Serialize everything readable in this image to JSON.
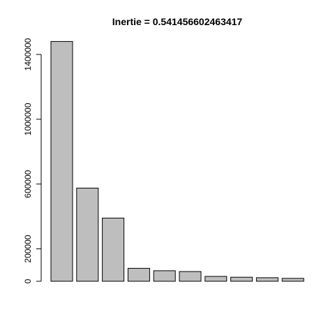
{
  "chart_data": {
    "type": "bar",
    "title": "Inertie = 0.541456602463417",
    "xlabel": "",
    "ylabel": "",
    "categories": [
      "",
      "",
      "",
      "",
      "",
      "",
      "",
      "",
      "",
      ""
    ],
    "values": [
      1480000,
      575000,
      390000,
      80000,
      65000,
      60000,
      30000,
      25000,
      22000,
      18000
    ],
    "ylim": [
      0,
      1400000
    ],
    "yticks": [
      0,
      200000,
      600000,
      1000000,
      1400000
    ],
    "ytick_labels": [
      "0",
      "200000",
      "600000",
      "1000000",
      "1400000"
    ],
    "bar_color": "#bebebe",
    "bar_border_color": "#000000",
    "grid": false
  }
}
